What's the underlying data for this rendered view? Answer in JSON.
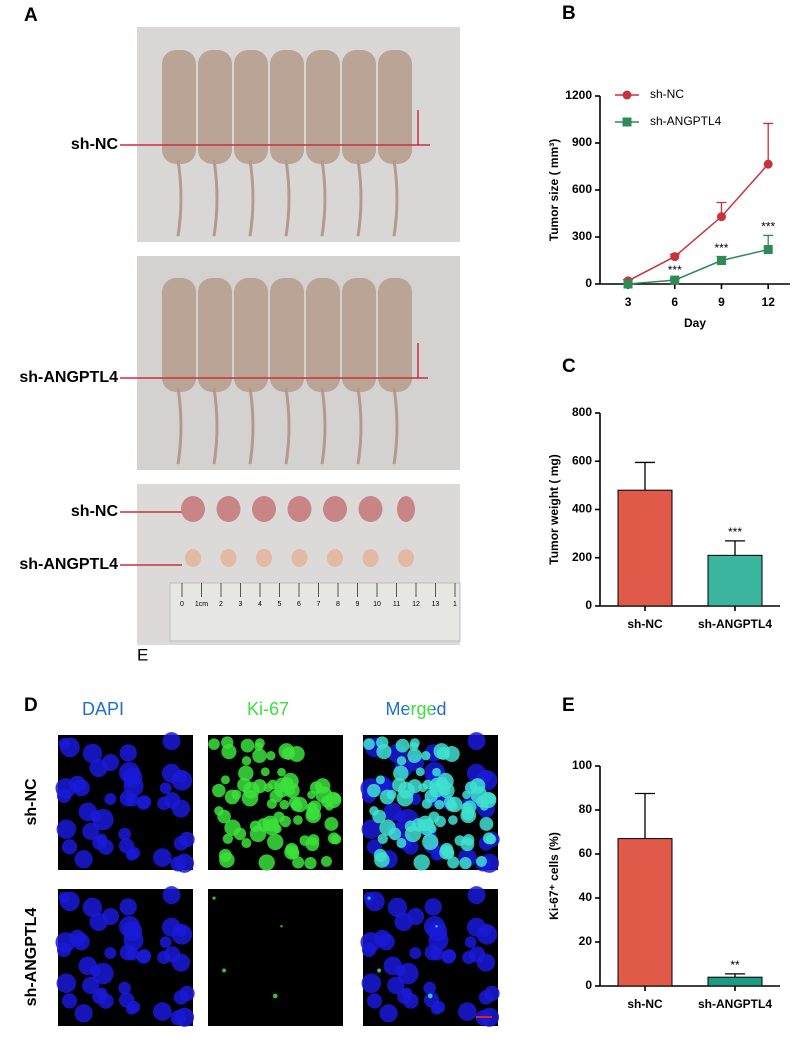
{
  "figure": {
    "panel_labels": [
      "A",
      "B",
      "C",
      "D",
      "E"
    ],
    "photo_a": {
      "mice_rows": [
        "sh-NC",
        "sh-ANGPTL4"
      ],
      "tumor_rows": [
        "sh-NC",
        "sh-ANGPTL4"
      ],
      "ruler": [
        "0",
        "1cm",
        "2",
        "3",
        "4",
        "5",
        "6",
        "7",
        "8",
        "9",
        "10",
        "11",
        "12",
        "13",
        "1"
      ],
      "stray_label": "E"
    },
    "photo_d": {
      "columns": [
        "DAPI",
        "Ki-67",
        "Merged"
      ],
      "rows": [
        "sh-NC",
        "sh-ANGPTL4"
      ]
    }
  },
  "chart_data": [
    {
      "type": "line",
      "x": [
        3,
        6,
        9,
        12
      ],
      "xlim": [
        1.2,
        13.4
      ],
      "xticks": [
        3,
        6,
        9,
        12
      ],
      "ylim": [
        0,
        1200
      ],
      "yticks": [
        0,
        300,
        600,
        900,
        1200
      ],
      "xlabel": "Day",
      "ylabel": "Tumor size ( mm³)",
      "series": [
        {
          "name": "sh-NC",
          "color": "#c8313e",
          "marker": "circle",
          "values": [
            20,
            175,
            430,
            765
          ],
          "errors": [
            8,
            15,
            90,
            260
          ]
        },
        {
          "name": "sh-ANGPTL4",
          "color": "#2e8b57",
          "marker": "square",
          "values": [
            0,
            25,
            150,
            220
          ],
          "errors": [
            3,
            8,
            25,
            90
          ],
          "annotations": [
            null,
            "***",
            "***",
            "***"
          ]
        }
      ]
    },
    {
      "type": "bar",
      "categories": [
        "sh-NC",
        "sh-ANGPTL4"
      ],
      "values": [
        480,
        210
      ],
      "errors": [
        115,
        60
      ],
      "colors": [
        "#e05a4a",
        "#3bb59e"
      ],
      "annotations": [
        null,
        "***"
      ],
      "ylim": [
        0,
        800
      ],
      "yticks": [
        0,
        200,
        400,
        600,
        800
      ],
      "ylabel": "Tumor weight ( mg)"
    },
    {
      "type": "bar",
      "categories": [
        "sh-NC",
        "sh-ANGPTL4"
      ],
      "values": [
        67,
        4
      ],
      "errors": [
        20.5,
        1.5
      ],
      "colors": [
        "#e05a4a",
        "#1e9a7e"
      ],
      "annotations": [
        null,
        "**"
      ],
      "ylim": [
        0,
        100
      ],
      "yticks": [
        0,
        20,
        40,
        60,
        80,
        100
      ],
      "ylabel": "Ki-67⁺ cells (%)"
    }
  ]
}
